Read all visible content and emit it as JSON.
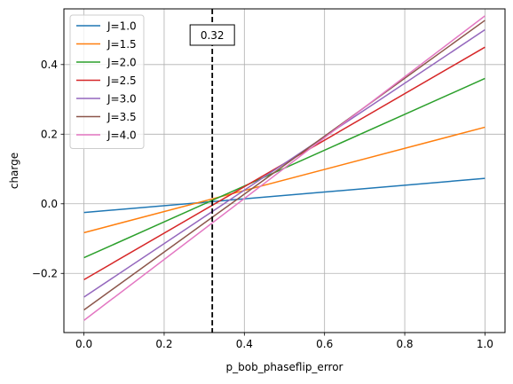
{
  "chart_data": {
    "type": "line",
    "title": "",
    "xlabel": "p_bob_phaseflip_error",
    "ylabel": "charge",
    "xlim": [
      -0.05,
      1.05
    ],
    "ylim": [
      -0.37,
      0.56
    ],
    "xticks": [
      0.0,
      0.2,
      0.4,
      0.6,
      0.8,
      1.0
    ],
    "xtick_labels": [
      "0.0",
      "0.2",
      "0.4",
      "0.6",
      "0.8",
      "1.0"
    ],
    "yticks": [
      -0.2,
      0.0,
      0.2,
      0.4
    ],
    "ytick_labels": [
      "−0.2",
      "0.0",
      "0.2",
      "0.4"
    ],
    "grid": true,
    "legend_position": "top-left",
    "series": [
      {
        "name": "J=1.0",
        "color": "#1f77b4",
        "x": [
          0.0,
          1.0
        ],
        "y": [
          -0.025,
          0.073
        ]
      },
      {
        "name": "J=1.5",
        "color": "#ff7f0e",
        "x": [
          0.0,
          1.0
        ],
        "y": [
          -0.083,
          0.22
        ]
      },
      {
        "name": "J=2.0",
        "color": "#2ca02c",
        "x": [
          0.0,
          1.0
        ],
        "y": [
          -0.155,
          0.36
        ]
      },
      {
        "name": "J=2.5",
        "color": "#d62728",
        "x": [
          0.0,
          1.0
        ],
        "y": [
          -0.218,
          0.45
        ]
      },
      {
        "name": "J=3.0",
        "color": "#9467bd",
        "x": [
          0.0,
          1.0
        ],
        "y": [
          -0.268,
          0.5
        ]
      },
      {
        "name": "J=3.5",
        "color": "#8c564b",
        "x": [
          0.0,
          1.0
        ],
        "y": [
          -0.305,
          0.527
        ]
      },
      {
        "name": "J=4.0",
        "color": "#e377c2",
        "x": [
          0.0,
          1.0
        ],
        "y": [
          -0.335,
          0.54
        ]
      }
    ],
    "vline": {
      "x": 0.32,
      "label": "0.32",
      "style": "dashed",
      "color": "#000000"
    }
  }
}
